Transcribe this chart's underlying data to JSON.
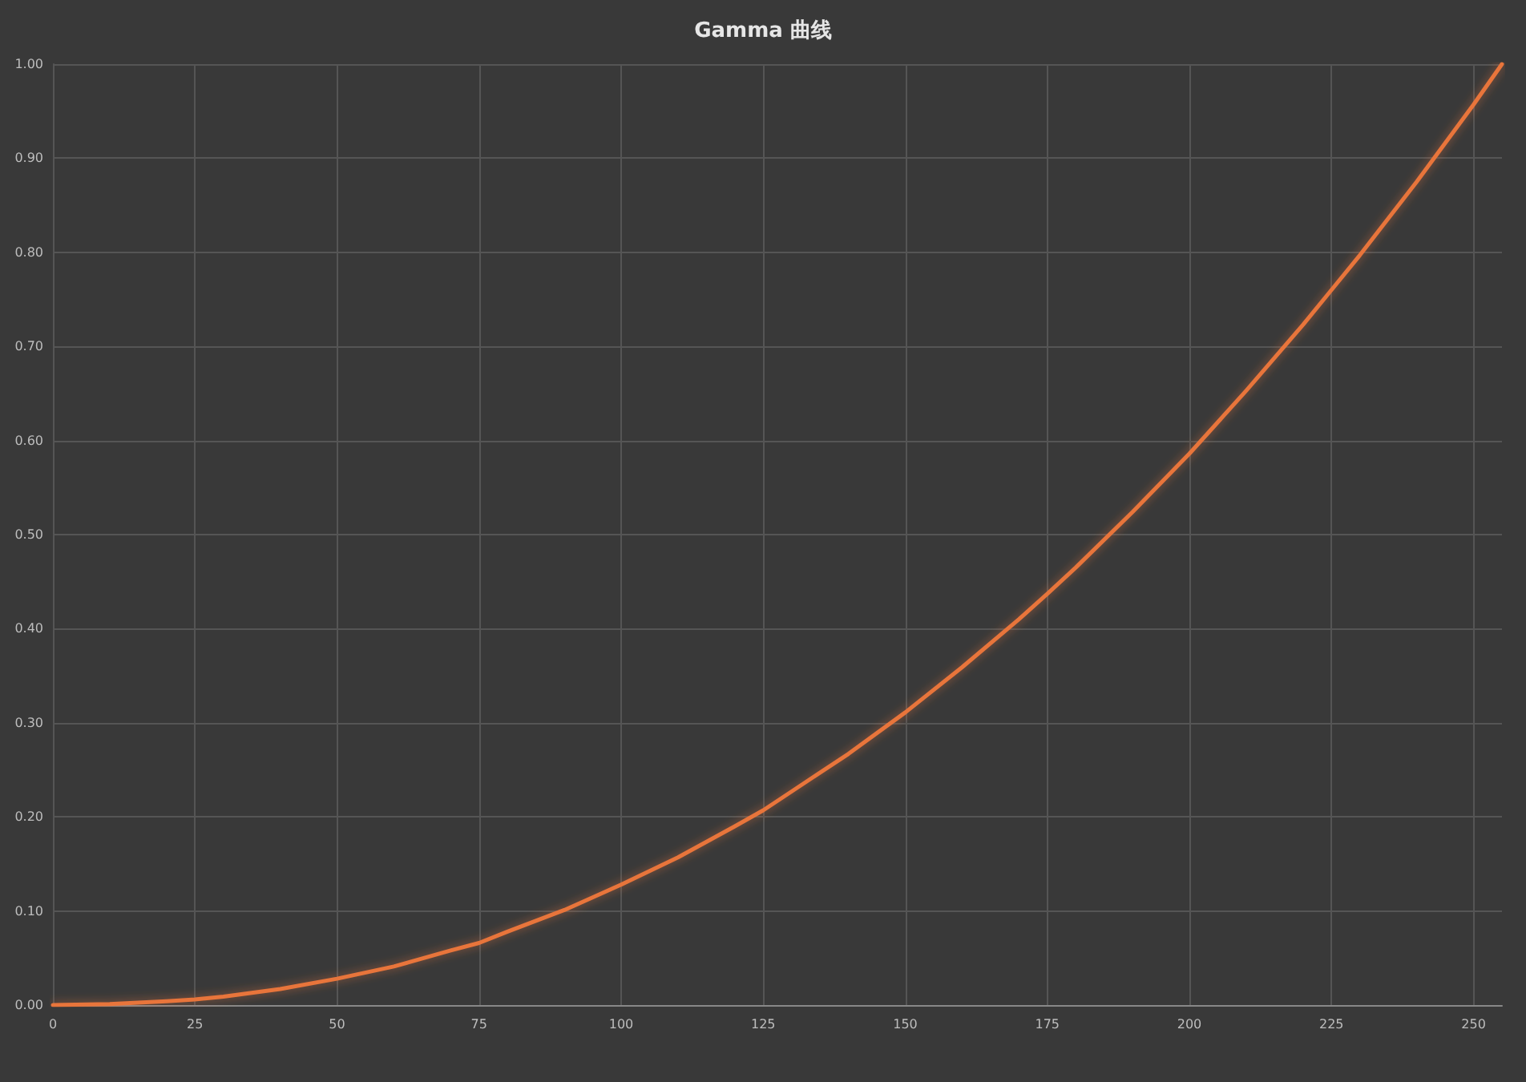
{
  "chart_data": {
    "type": "line",
    "title": "Gamma 曲线",
    "x": [
      0,
      10,
      20,
      25,
      30,
      40,
      50,
      60,
      70,
      75,
      80,
      90,
      100,
      110,
      120,
      125,
      130,
      140,
      150,
      160,
      170,
      175,
      180,
      190,
      200,
      210,
      220,
      225,
      230,
      240,
      250,
      255
    ],
    "series": [
      {
        "color": "#e8743b",
        "values": [
          0,
          0.001,
          0.004,
          0.006,
          0.009,
          0.017,
          0.028,
          0.041,
          0.058,
          0.066,
          0.078,
          0.101,
          0.128,
          0.157,
          0.19,
          0.207,
          0.227,
          0.267,
          0.311,
          0.359,
          0.41,
          0.437,
          0.465,
          0.524,
          0.586,
          0.653,
          0.723,
          0.76,
          0.797,
          0.875,
          0.957,
          1.0
        ]
      }
    ],
    "xlim": [
      0,
      255
    ],
    "xticks": [
      0,
      25,
      50,
      75,
      100,
      125,
      150,
      175,
      200,
      225,
      250
    ],
    "ylim": [
      0,
      1
    ],
    "yticks": [
      {
        "value": 0,
        "label": "0.00"
      },
      {
        "value": 0.1,
        "label": "0.10"
      },
      {
        "value": 0.2,
        "label": "0.20"
      },
      {
        "value": 0.3,
        "label": "0.30"
      },
      {
        "value": 0.4,
        "label": "0.40"
      },
      {
        "value": 0.5,
        "label": "0.50"
      },
      {
        "value": 0.6,
        "label": "0.60"
      },
      {
        "value": 0.7,
        "label": "0.70"
      },
      {
        "value": 0.8,
        "label": "0.80"
      },
      {
        "value": 0.9,
        "label": "0.90"
      },
      {
        "value": 1,
        "label": "1.00"
      }
    ],
    "grid": true,
    "marker": "none",
    "line_style": "solid"
  }
}
